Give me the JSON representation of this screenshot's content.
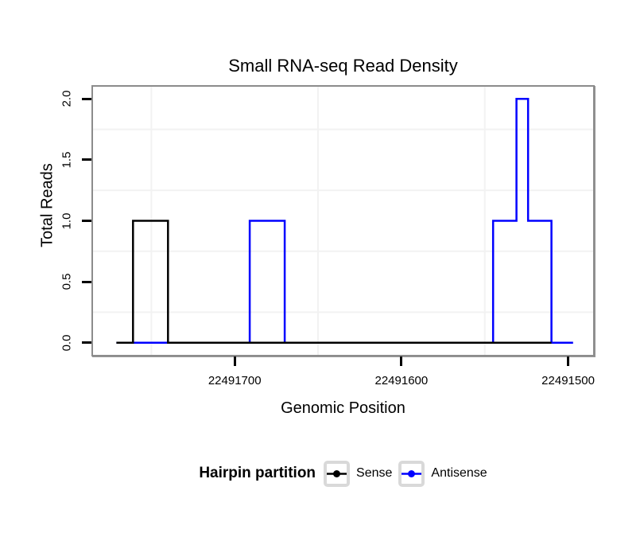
{
  "chart_data": {
    "type": "line",
    "subtype": "step",
    "title": "Small RNA-seq Read Density",
    "xlabel": "Genomic Position",
    "ylabel": "Total Reads",
    "x_reversed": true,
    "xlim": [
      22491785,
      22491485
    ],
    "ylim": [
      -0.1,
      2.1
    ],
    "x_ticks": [
      {
        "value": 22491700,
        "label": "22491700"
      },
      {
        "value": 22491600,
        "label": "22491600"
      },
      {
        "value": 22491500,
        "label": "22491500"
      }
    ],
    "y_ticks": [
      {
        "value": 0.0,
        "label": "0.0"
      },
      {
        "value": 0.5,
        "label": "0.5"
      },
      {
        "value": 1.0,
        "label": "1.0"
      },
      {
        "value": 1.5,
        "label": "1.5"
      },
      {
        "value": 2.0,
        "label": "2.0"
      }
    ],
    "x_minor_gridlines": [
      22491750,
      22491650,
      22491550
    ],
    "y_minor_gridlines": [
      0.25,
      0.75,
      1.25,
      1.75
    ],
    "grid_on": true,
    "grid_color": "#f2f2f2",
    "legend_position": "bottom",
    "series": [
      {
        "name": "Sense",
        "color": "#000000",
        "points": [
          [
            22491771,
            0
          ],
          [
            22491761,
            0
          ],
          [
            22491761,
            1
          ],
          [
            22491740,
            1
          ],
          [
            22491740,
            0
          ],
          [
            22491510,
            0
          ]
        ]
      },
      {
        "name": "Antisense",
        "color": "#0000ff",
        "points": [
          [
            22491771,
            0
          ],
          [
            22491691,
            0
          ],
          [
            22491691,
            1
          ],
          [
            22491670,
            1
          ],
          [
            22491670,
            0
          ],
          [
            22491545,
            0
          ],
          [
            22491545,
            1
          ],
          [
            22491531,
            1
          ],
          [
            22491531,
            2
          ],
          [
            22491524,
            2
          ],
          [
            22491524,
            1
          ],
          [
            22491510,
            1
          ],
          [
            22491510,
            0
          ],
          [
            22491497,
            0
          ]
        ]
      }
    ],
    "legend": {
      "title": "Hairpin partition",
      "entries": [
        {
          "label": "Sense",
          "color": "#000000"
        },
        {
          "label": "Antisense",
          "color": "#0000ff"
        }
      ]
    }
  },
  "colors": {
    "panel_border": "#8c8c8c",
    "tick": "#000000",
    "legend_key_border": "#d9d9d9"
  }
}
